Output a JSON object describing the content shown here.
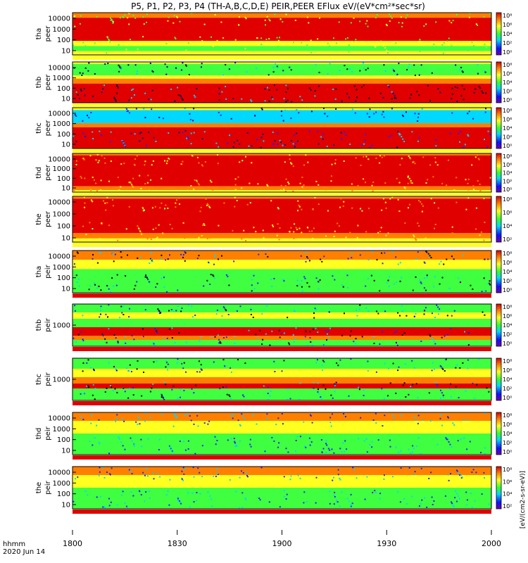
{
  "title": "P5, P1, P2, P3, P4 (TH-A,B,C,D,E) PEIR,PEER EFlux eV/(eV*cm²*sec*sr)",
  "time_axis": {
    "ticks": [
      "1800",
      "1830",
      "1900",
      "1930",
      "2000"
    ],
    "label_top": "hhmm",
    "label_bottom": "2020 Jun 14"
  },
  "colorbar_unit": "[eV/(cm2-s-sr-eV)]",
  "colors": {
    "low": "#2020ff",
    "mid_low": "#00d8ff",
    "mid": "#40ff40",
    "mid_high": "#ffff20",
    "high": "#ff8000",
    "max": "#e00000",
    "stripe": "#ffff20"
  },
  "chart_data": {
    "type": "heatmap",
    "x_range": [
      "1800",
      "2000"
    ],
    "panels": [
      {
        "probe": "tha",
        "species": "peer",
        "ylabel": [
          "tha",
          "peer"
        ],
        "y_ticks": [
          "10000",
          "1000",
          "100",
          "10"
        ],
        "colorbar_ticks": [
          "10⁸",
          "10⁶",
          "10⁴",
          "10²",
          "10⁰"
        ],
        "dominant": "high"
      },
      {
        "probe": "thb",
        "species": "peer",
        "ylabel": [
          "thb",
          "peer"
        ],
        "y_ticks": [
          "10000",
          "1000",
          "100",
          "10"
        ],
        "colorbar_ticks": [
          "10⁸",
          "10⁶",
          "10⁴",
          "10²",
          "10⁰"
        ],
        "dominant": "max"
      },
      {
        "probe": "thc",
        "species": "peer",
        "ylabel": [
          "thc",
          "peer"
        ],
        "y_ticks": [
          "10000",
          "1000",
          "100",
          "10"
        ],
        "colorbar_ticks": [
          "10⁸",
          "10⁶",
          "10⁴",
          "10²",
          "10⁰"
        ],
        "dominant": "max"
      },
      {
        "probe": "thd",
        "species": "peer",
        "ylabel": [
          "thd",
          "peer"
        ],
        "y_ticks": [
          "10000",
          "1000",
          "100",
          "10"
        ],
        "colorbar_ticks": [
          "10⁸",
          "10⁶",
          "10⁴",
          "10²",
          "10⁰"
        ],
        "dominant": "max"
      },
      {
        "probe": "the",
        "species": "peer",
        "ylabel": [
          "the",
          "peer"
        ],
        "y_ticks": [
          "10000",
          "1000",
          "100",
          "10"
        ],
        "colorbar_ticks": [
          "10⁸",
          "10⁶",
          "10⁴",
          "10²"
        ],
        "dominant": "max"
      },
      {
        "probe": "tha",
        "species": "peir",
        "ylabel": [
          "tha",
          "peir"
        ],
        "y_ticks": [
          "10000",
          "1000",
          "100",
          "10"
        ],
        "colorbar_ticks": [
          "10⁸",
          "10⁶",
          "10⁴",
          "10²",
          "10⁰"
        ],
        "dominant": "mid_high"
      },
      {
        "probe": "thb",
        "species": "peir",
        "ylabel": [
          "thb",
          "peir"
        ],
        "y_ticks": [
          "1000"
        ],
        "colorbar_ticks": [
          "10⁸",
          "10⁶",
          "10⁴",
          "10²",
          "10⁰"
        ],
        "dominant": "mid"
      },
      {
        "probe": "thc",
        "species": "peir",
        "ylabel": [
          "thc",
          "peir"
        ],
        "y_ticks": [
          "1000"
        ],
        "colorbar_ticks": [
          "10⁸",
          "10⁶",
          "10⁴",
          "10²",
          "10⁰"
        ],
        "dominant": "mid"
      },
      {
        "probe": "thd",
        "species": "peir",
        "ylabel": [
          "thd",
          "peir"
        ],
        "y_ticks": [
          "10000",
          "1000",
          "100",
          "10"
        ],
        "colorbar_ticks": [
          "10⁸",
          "10⁶",
          "10⁴",
          "10²",
          "10⁰"
        ],
        "dominant": "mid_high"
      },
      {
        "probe": "the",
        "species": "peir",
        "ylabel": [
          "the",
          "peir"
        ],
        "y_ticks": [
          "10000",
          "1000",
          "100",
          "10"
        ],
        "colorbar_ticks": [
          "10⁸",
          "10⁶",
          "10⁴",
          "10²"
        ],
        "dominant": "mid_high"
      }
    ]
  }
}
